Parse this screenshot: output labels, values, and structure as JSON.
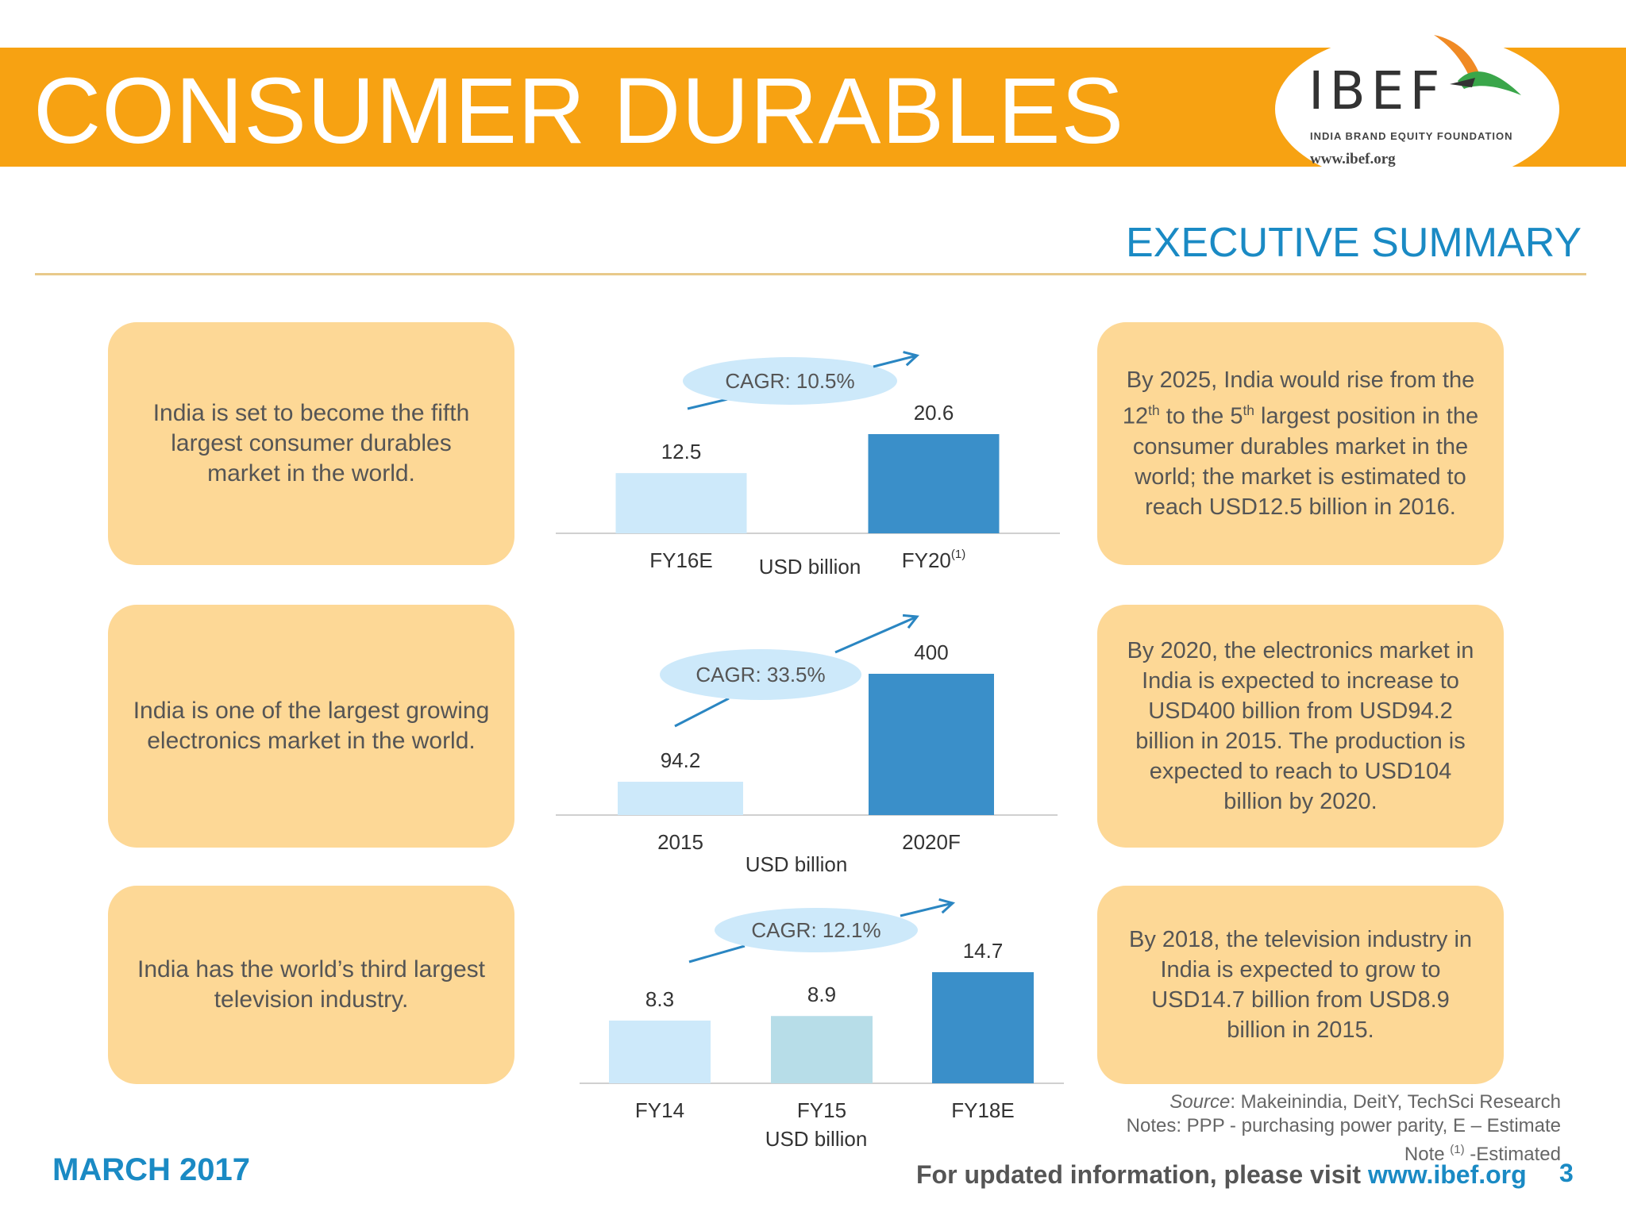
{
  "header": {
    "title": "CONSUMER DURABLES",
    "logo_text": "IBEF",
    "logo_subtitle": "INDIA BRAND EQUITY FOUNDATION",
    "logo_url": "www.ibef.org"
  },
  "section_title": "EXECUTIVE SUMMARY",
  "rows": [
    {
      "left_text": "India is set to become the fifth largest consumer durables market in the world.",
      "right_text": "By 2025, India would rise from the 12th to the 5th largest position in the consumer durables market in the world; the market is estimated to reach USD12.5 billion in 2016."
    },
    {
      "left_text": "India is one of the largest growing electronics market in the world.",
      "right_text": "By 2020, the electronics market in India is expected to increase to USD400 billion from USD94.2 billion in 2015. The production is expected to reach to USD104 billion by 2020."
    },
    {
      "left_text": "India has the world’s third largest television industry.",
      "right_text": "By 2018, the television industry in India is expected to grow to USD14.7 billion from USD8.9 billion in 2015."
    }
  ],
  "chart_data": [
    {
      "type": "bar",
      "categories": [
        "FY16E",
        "FY20(1)"
      ],
      "values": [
        12.5,
        20.6
      ],
      "xlabel": "USD billion",
      "annotation": "CAGR: 10.5%",
      "colors": [
        "#cde9fa",
        "#3a8fc9"
      ]
    },
    {
      "type": "bar",
      "categories": [
        "2015",
        "2020F"
      ],
      "values": [
        94.2,
        400
      ],
      "xlabel": "USD billion",
      "annotation": "CAGR: 33.5%",
      "colors": [
        "#cde9fa",
        "#3a8fc9"
      ]
    },
    {
      "type": "bar",
      "categories": [
        "FY14",
        "FY15",
        "FY18E"
      ],
      "values": [
        8.3,
        8.9,
        14.7
      ],
      "xlabel": "USD billion",
      "annotation": "CAGR: 12.1%",
      "colors": [
        "#cde9fa",
        "#b7dde8",
        "#3a8fc9"
      ]
    }
  ],
  "footer": {
    "date": "MARCH 2017",
    "source_label": "Source",
    "source_text": ": Makeinindia, DeitY, TechSci Research",
    "notes_line": "Notes: PPP - purchasing power parity, E – Estimate",
    "note_label": "Note",
    "note_sup": "(1)",
    "note_text": " -Estimated",
    "visit_text": "For updated information, please visit ",
    "visit_url": "www.ibef.org",
    "page_number": "3"
  }
}
